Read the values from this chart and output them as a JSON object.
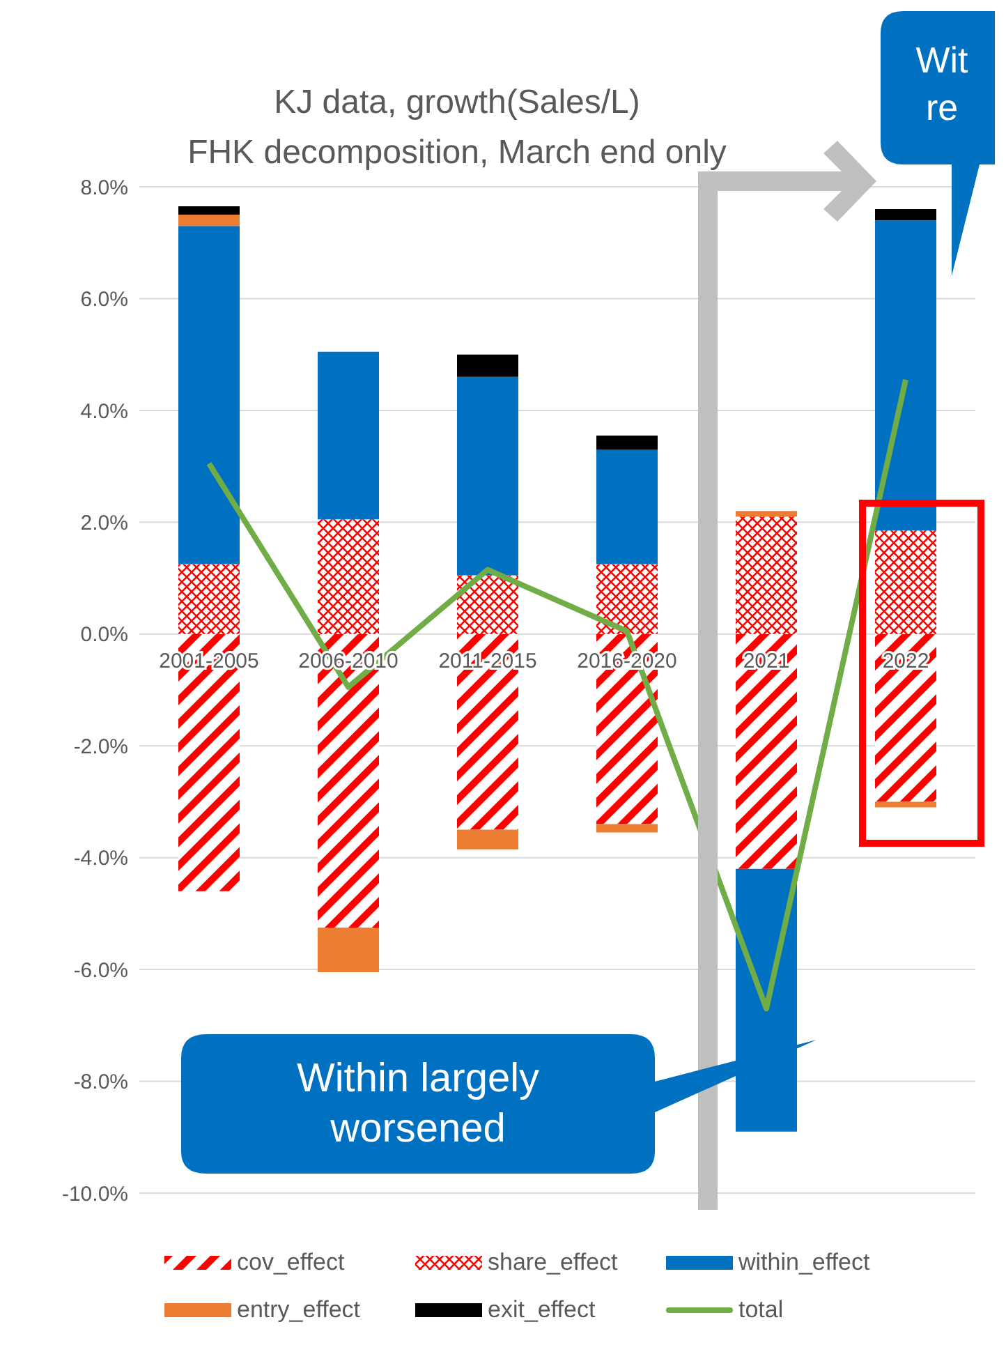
{
  "chart_data": {
    "type": "bar",
    "stacked": true,
    "title": "KJ data, growth(Sales/L)",
    "subtitle": "FHK decomposition, March end only",
    "categories": [
      "2001-2005",
      "2006-2010",
      "2011-2015",
      "2016-2020",
      "2021",
      "2022"
    ],
    "series": [
      {
        "name": "cov_effect",
        "color": "#ff0000",
        "values": [
          -4.6,
          -5.25,
          -3.5,
          -3.4,
          -4.2,
          -3.0
        ]
      },
      {
        "name": "share_effect",
        "color": "#ff0000",
        "values": [
          1.25,
          2.05,
          1.05,
          1.25,
          2.1,
          1.85
        ]
      },
      {
        "name": "within_effect",
        "color": "#0070c0",
        "values": [
          6.05,
          3.0,
          3.55,
          2.05,
          -4.7,
          5.55
        ]
      },
      {
        "name": "entry_effect",
        "color": "#ed7d31",
        "values": [
          0.2,
          -0.8,
          -0.35,
          -0.15,
          0.1,
          -0.1
        ]
      },
      {
        "name": "exit_effect",
        "color": "#000000",
        "values": [
          0.15,
          0,
          0.4,
          0.25,
          0,
          0.2
        ]
      },
      {
        "name": "total",
        "type": "line",
        "color": "#70ad47",
        "values": [
          3.05,
          -0.95,
          1.15,
          0.05,
          -6.7,
          4.55
        ]
      }
    ],
    "ylim": [
      -10,
      8
    ],
    "yticks": [
      {
        "value": 8,
        "label": "8.0%"
      },
      {
        "value": 6,
        "label": "6.0%"
      },
      {
        "value": 4,
        "label": "4.0%"
      },
      {
        "value": 2,
        "label": "2.0%"
      },
      {
        "value": 0,
        "label": "0.0%"
      },
      {
        "value": -2,
        "label": "-2.0%"
      },
      {
        "value": -4,
        "label": "-4.0%"
      },
      {
        "value": -6,
        "label": "-6.0%"
      },
      {
        "value": -8,
        "label": "-8.0%"
      },
      {
        "value": -10,
        "label": "-10.0%"
      }
    ],
    "grid": "y",
    "legend": "bottom",
    "marker": "none",
    "annotations": [
      "Within largely\nworsened",
      "Wit\nre"
    ]
  }
}
